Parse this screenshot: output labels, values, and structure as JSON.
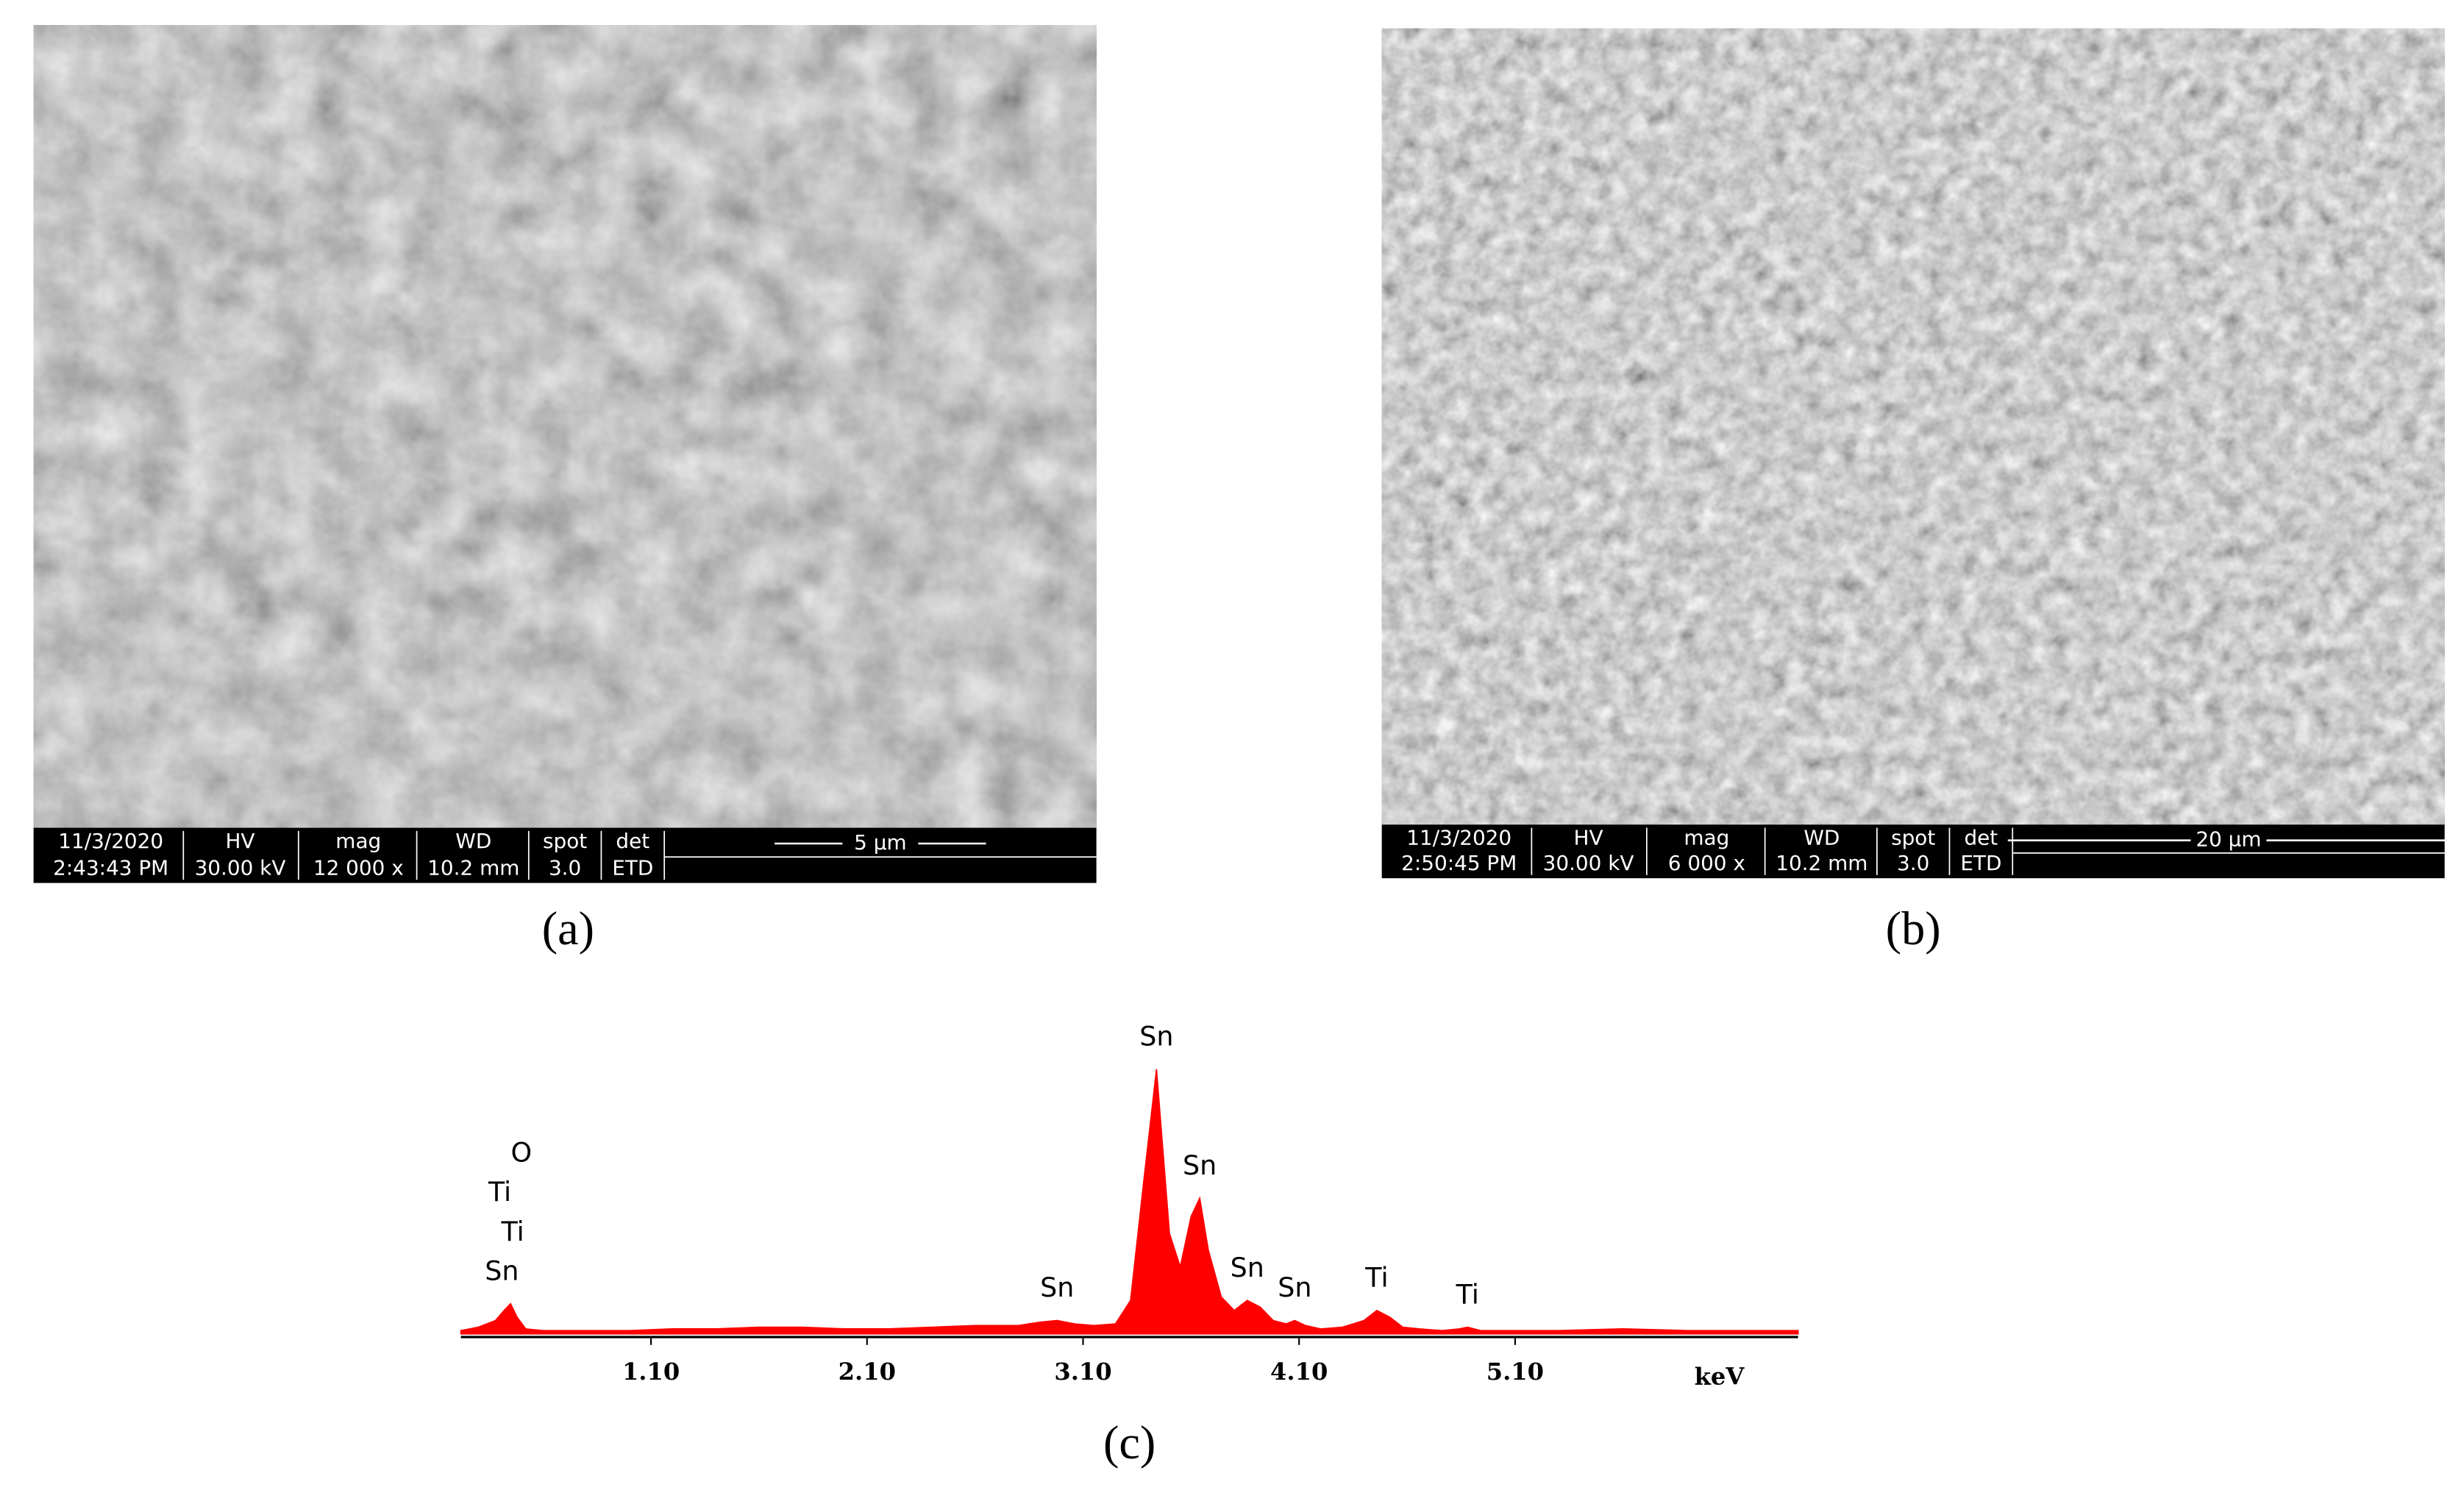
{
  "panels": [
    {
      "label": "(a)",
      "info": {
        "headers": [
          "11/3/2020",
          "HV",
          "mag",
          "WD",
          "spot",
          "det"
        ],
        "values": [
          "2:43:43 PM",
          "30.00 kV",
          "12 000 x",
          "10.2 mm",
          "3.0",
          "ETD"
        ],
        "scale": "5 µm"
      }
    },
    {
      "label": "(b)",
      "info": {
        "headers": [
          "11/3/2020",
          "HV",
          "mag",
          "WD",
          "spot",
          "det"
        ],
        "values": [
          "2:50:45 PM",
          "30.00 kV",
          "6 000 x",
          "10.2 mm",
          "3.0",
          "ETD"
        ],
        "scale": "20 µm"
      }
    }
  ],
  "chart_data": {
    "type": "area",
    "label": "(c)",
    "x_label": "keV",
    "color": "#ff0000",
    "x": [
      0.22,
      0.3,
      0.38,
      0.42,
      0.45,
      0.48,
      0.52,
      0.6,
      0.8,
      1.0,
      1.2,
      1.4,
      1.6,
      1.8,
      2.0,
      2.2,
      2.4,
      2.6,
      2.8,
      2.9,
      2.98,
      3.06,
      3.15,
      3.25,
      3.32,
      3.38,
      3.44,
      3.5,
      3.55,
      3.6,
      3.64,
      3.68,
      3.74,
      3.8,
      3.86,
      3.92,
      3.98,
      4.04,
      4.08,
      4.13,
      4.2,
      4.3,
      4.4,
      4.46,
      4.52,
      4.58,
      4.66,
      4.76,
      4.84,
      4.88,
      4.94,
      5.05,
      5.3,
      5.6,
      5.9,
      6.2,
      6.41
    ],
    "values": [
      2,
      4,
      8,
      14,
      18,
      10,
      3,
      2,
      2,
      2,
      3,
      3,
      4,
      4,
      3,
      3,
      4,
      5,
      5,
      7,
      8,
      6,
      5,
      6,
      20,
      90,
      158,
      60,
      40,
      70,
      81,
      50,
      22,
      14,
      20,
      16,
      8,
      6,
      8,
      5,
      3,
      4,
      8,
      14,
      10,
      4,
      3,
      2,
      3,
      4,
      2,
      2,
      2,
      3,
      2,
      2,
      2
    ],
    "xlim": [
      0.22,
      6.41
    ],
    "ylim": [
      0,
      160
    ],
    "xticks": [
      {
        "value": 1.1,
        "label": "1.10"
      },
      {
        "value": 2.1,
        "label": "2.10"
      },
      {
        "value": 3.1,
        "label": "3.10"
      },
      {
        "value": 4.1,
        "label": "4.10"
      },
      {
        "value": 5.1,
        "label": "5.10"
      }
    ],
    "annotations": [
      {
        "text": "O",
        "x": 0.5
      },
      {
        "text": "Ti",
        "x": 0.4
      },
      {
        "text": "Ti",
        "x": 0.46
      },
      {
        "text": "Sn",
        "x": 0.41
      },
      {
        "text": "Sn",
        "x": 2.98
      },
      {
        "text": "Sn",
        "x": 3.44
      },
      {
        "text": "Sn",
        "x": 3.64
      },
      {
        "text": "Sn",
        "x": 3.86
      },
      {
        "text": "Sn",
        "x": 4.08
      },
      {
        "text": "Ti",
        "x": 4.46
      },
      {
        "text": "Ti",
        "x": 4.88
      }
    ]
  }
}
